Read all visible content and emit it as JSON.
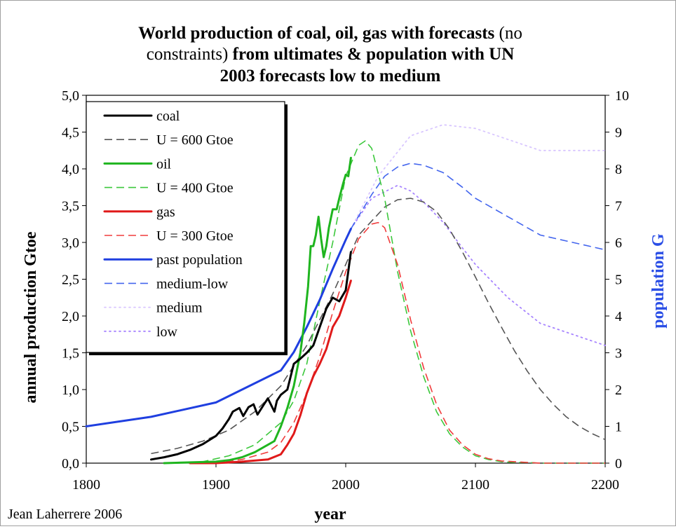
{
  "chart_data": {
    "type": "line",
    "title_bold_1": "World production of coal, oil, gas with forecasts",
    "title_plain": " (no",
    "title_line2_plain": "constraints)",
    "title_line2_bold": " from ultimates & population with UN",
    "title_line3": "2003 forecasts low to medium",
    "xlabel": "year",
    "ylabel": "annual production Gtoe",
    "y2label": "population G",
    "credit": "Jean Laherrere 2006",
    "xlim": [
      1800,
      2200
    ],
    "ylim": [
      0,
      5
    ],
    "y2lim": [
      0,
      10
    ],
    "x_ticks": [
      "1800",
      "1900",
      "2000",
      "2100",
      "2200"
    ],
    "y_ticks": [
      "0,0",
      "0,5",
      "1,0",
      "1,5",
      "2,0",
      "2,5",
      "3,0",
      "3,5",
      "4,0",
      "4,5",
      "5,0"
    ],
    "y2_ticks": [
      "0",
      "1",
      "2",
      "3",
      "4",
      "5",
      "6",
      "7",
      "8",
      "9",
      "10"
    ],
    "grid": false,
    "legend_position": "top-left",
    "colors": {
      "coal": "#000000",
      "coal_fc": "#555555",
      "oil": "#1fb51f",
      "oil_fc": "#3cc83c",
      "gas": "#e01a1a",
      "gas_fc": "#f03c3c",
      "pop": "#1f3fe0",
      "pop_ml": "#4466ee",
      "pop_med": "#d8c6ff",
      "pop_low": "#a784ff",
      "pop_label": "#2a4ee6"
    },
    "series": [
      {
        "name": "coal",
        "axis": "left",
        "style": "solid",
        "color_key": "coal",
        "x": [
          1850,
          1860,
          1870,
          1880,
          1890,
          1900,
          1905,
          1910,
          1913,
          1918,
          1921,
          1925,
          1929,
          1932,
          1937,
          1940,
          1945,
          1947,
          1950,
          1955,
          1960,
          1965,
          1970,
          1975,
          1980,
          1985,
          1990,
          1995,
          2000,
          2004
        ],
        "y": [
          0.05,
          0.08,
          0.12,
          0.18,
          0.26,
          0.37,
          0.47,
          0.6,
          0.7,
          0.75,
          0.64,
          0.76,
          0.8,
          0.66,
          0.8,
          0.88,
          0.7,
          0.85,
          0.93,
          1.0,
          1.35,
          1.42,
          1.5,
          1.6,
          1.85,
          2.1,
          2.25,
          2.2,
          2.35,
          2.87
        ]
      },
      {
        "name": "U = 600 Gtoe",
        "axis": "left",
        "style": "dashed",
        "color_key": "coal_fc",
        "x": [
          1850,
          1870,
          1890,
          1910,
          1930,
          1950,
          1970,
          1990,
          2010,
          2030,
          2040,
          2050,
          2060,
          2070,
          2080,
          2090,
          2100,
          2110,
          2120,
          2130,
          2140,
          2150,
          2160,
          2170,
          2180,
          2190,
          2200
        ],
        "y": [
          0.13,
          0.2,
          0.3,
          0.45,
          0.7,
          1.05,
          1.6,
          2.3,
          3.1,
          3.48,
          3.58,
          3.6,
          3.55,
          3.42,
          3.18,
          2.87,
          2.53,
          2.18,
          1.85,
          1.53,
          1.25,
          1.0,
          0.8,
          0.63,
          0.5,
          0.4,
          0.32
        ]
      },
      {
        "name": "oil",
        "axis": "left",
        "style": "solid",
        "color_key": "oil",
        "x": [
          1860,
          1900,
          1910,
          1920,
          1930,
          1940,
          1945,
          1950,
          1955,
          1960,
          1965,
          1968,
          1971,
          1973,
          1975,
          1977,
          1979,
          1981,
          1983,
          1985,
          1987,
          1990,
          1993,
          1995,
          1998,
          2000,
          2002,
          2004
        ],
        "y": [
          0.0,
          0.02,
          0.04,
          0.08,
          0.15,
          0.25,
          0.3,
          0.5,
          0.75,
          1.05,
          1.5,
          1.9,
          2.4,
          2.95,
          2.95,
          3.1,
          3.35,
          3.05,
          2.8,
          2.95,
          3.2,
          3.45,
          3.45,
          3.6,
          3.8,
          3.92,
          3.9,
          4.15
        ]
      },
      {
        "name": "U = 400 Gtoe",
        "axis": "left",
        "style": "dashed",
        "color_key": "oil_fc",
        "x": [
          1870,
          1890,
          1910,
          1930,
          1950,
          1960,
          1970,
          1980,
          1990,
          2000,
          2010,
          2015,
          2020,
          2030,
          2040,
          2050,
          2060,
          2070,
          2080,
          2090,
          2100,
          2110,
          2120,
          2130,
          2140,
          2150,
          2160,
          2170,
          2180,
          2190,
          2200
        ],
        "y": [
          0.0,
          0.02,
          0.1,
          0.25,
          0.55,
          0.85,
          1.35,
          2.2,
          3.0,
          3.9,
          4.32,
          4.38,
          4.28,
          3.6,
          2.6,
          1.8,
          1.18,
          0.7,
          0.4,
          0.22,
          0.1,
          0.05,
          0.02,
          0.01,
          0.01,
          0.0,
          0.0,
          0.0,
          0.0,
          0.0,
          0.0
        ]
      },
      {
        "name": "gas",
        "axis": "left",
        "style": "solid",
        "color_key": "gas",
        "x": [
          1880,
          1900,
          1920,
          1940,
          1950,
          1955,
          1960,
          1965,
          1970,
          1975,
          1980,
          1985,
          1990,
          1995,
          2000,
          2004
        ],
        "y": [
          0.0,
          0.0,
          0.02,
          0.05,
          0.12,
          0.25,
          0.4,
          0.65,
          0.95,
          1.18,
          1.35,
          1.55,
          1.85,
          2.0,
          2.25,
          2.48
        ]
      },
      {
        "name": "U = 300 Gtoe",
        "axis": "left",
        "style": "dashed",
        "color_key": "gas_fc",
        "x": [
          1880,
          1900,
          1920,
          1940,
          1950,
          1960,
          1970,
          1980,
          1990,
          2000,
          2010,
          2020,
          2025,
          2030,
          2040,
          2050,
          2060,
          2070,
          2080,
          2090,
          2100,
          2110,
          2120,
          2130,
          2140,
          2150,
          2160,
          2170,
          2180,
          2190,
          2200
        ],
        "y": [
          0.0,
          0.01,
          0.05,
          0.15,
          0.28,
          0.55,
          0.95,
          1.45,
          2.05,
          2.6,
          3.05,
          3.25,
          3.27,
          3.2,
          2.7,
          1.95,
          1.3,
          0.8,
          0.45,
          0.25,
          0.12,
          0.06,
          0.03,
          0.02,
          0.01,
          0.0,
          0.0,
          0.0,
          0.0,
          0.0,
          0.0
        ]
      },
      {
        "name": "past population",
        "axis": "right",
        "style": "solid",
        "color_key": "pop",
        "x": [
          1800,
          1850,
          1900,
          1950,
          1960,
          1970,
          1980,
          1990,
          2000,
          2004
        ],
        "y": [
          1.0,
          1.26,
          1.65,
          2.52,
          3.02,
          3.7,
          4.44,
          5.28,
          6.07,
          6.37
        ]
      },
      {
        "name": "medium-low",
        "axis": "right",
        "style": "dashed",
        "color_key": "pop_ml",
        "x": [
          2004,
          2020,
          2030,
          2040,
          2050,
          2060,
          2075,
          2090,
          2100,
          2125,
          2150,
          2175,
          2200
        ],
        "y": [
          6.37,
          7.3,
          7.8,
          8.05,
          8.15,
          8.1,
          7.9,
          7.5,
          7.2,
          6.7,
          6.2,
          6.0,
          5.8
        ]
      },
      {
        "name": "medium",
        "axis": "right",
        "style": "dotted",
        "color_key": "pop_med",
        "x": [
          2004,
          2025,
          2050,
          2075,
          2100,
          2125,
          2150,
          2175,
          2200
        ],
        "y": [
          6.37,
          7.8,
          8.9,
          9.2,
          9.1,
          8.8,
          8.5,
          8.5,
          8.5
        ]
      },
      {
        "name": "low",
        "axis": "right",
        "style": "dotted",
        "color_key": "pop_low",
        "x": [
          2004,
          2020,
          2040,
          2050,
          2060,
          2075,
          2090,
          2100,
          2125,
          2150,
          2175,
          2200
        ],
        "y": [
          6.37,
          7.2,
          7.55,
          7.4,
          7.1,
          6.55,
          5.85,
          5.4,
          4.5,
          3.8,
          3.5,
          3.2
        ]
      }
    ]
  }
}
